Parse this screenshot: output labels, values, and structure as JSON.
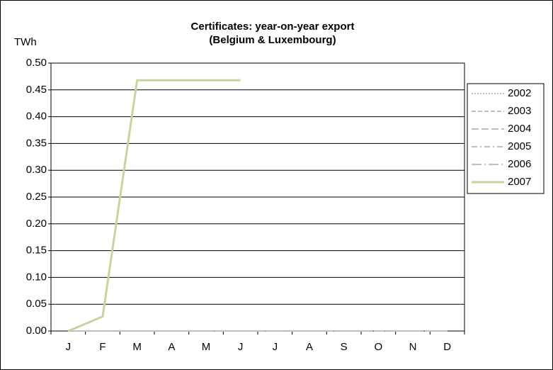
{
  "chart_data": {
    "type": "line",
    "title": "Certificates: year-on-year export",
    "subtitle": "(Belgium & Luxembourg)",
    "y_label": "TWh",
    "categories": [
      "J",
      "F",
      "M",
      "A",
      "M",
      "J",
      "J",
      "A",
      "S",
      "O",
      "N",
      "D"
    ],
    "series": [
      {
        "name": "2002",
        "color": "#bfbfbf",
        "dash": "2,2",
        "values": [
          0,
          0,
          0,
          0,
          0,
          0,
          0,
          0,
          0,
          0,
          0,
          0
        ]
      },
      {
        "name": "2003",
        "color": "#bfbfbf",
        "dash": "6,3",
        "values": [
          0,
          0,
          0,
          0,
          0,
          0,
          0,
          0,
          0,
          0,
          0,
          0
        ]
      },
      {
        "name": "2004",
        "color": "#bfbfbf",
        "dash": "10,4",
        "values": [
          0,
          0,
          0,
          0,
          0,
          0,
          0,
          0,
          0,
          0,
          0,
          0
        ]
      },
      {
        "name": "2005",
        "color": "#bfbfbf",
        "dash": "8,4,2,4",
        "values": [
          0,
          0,
          0,
          0,
          0,
          0,
          0,
          0,
          0,
          0,
          0,
          0
        ]
      },
      {
        "name": "2006",
        "color": "#bfbfbf",
        "dash": "14,4,2,4",
        "values": [
          0,
          0,
          0,
          0,
          0,
          0,
          0,
          0,
          0,
          0,
          0,
          0
        ]
      },
      {
        "name": "2007",
        "color": "#c3d69b",
        "dash": "none",
        "values": [
          0,
          0.027,
          0.468,
          0.468,
          0.468,
          0.468,
          null,
          null,
          null,
          null,
          null,
          null
        ]
      }
    ],
    "ylim": [
      0,
      0.5
    ],
    "yticks": [
      {
        "value": 0,
        "label": "0.00"
      },
      0.05,
      {
        "value": 0.1,
        "label": "0.10"
      },
      0.15,
      {
        "value": 0.2,
        "label": "0.20"
      },
      0.25,
      {
        "value": 0.3,
        "label": "0.30"
      },
      0.35,
      {
        "value": 0.4,
        "label": "0.40"
      },
      0.45,
      {
        "value": 0.5,
        "label": "0.50"
      }
    ],
    "grid": true,
    "legend": "right"
  }
}
